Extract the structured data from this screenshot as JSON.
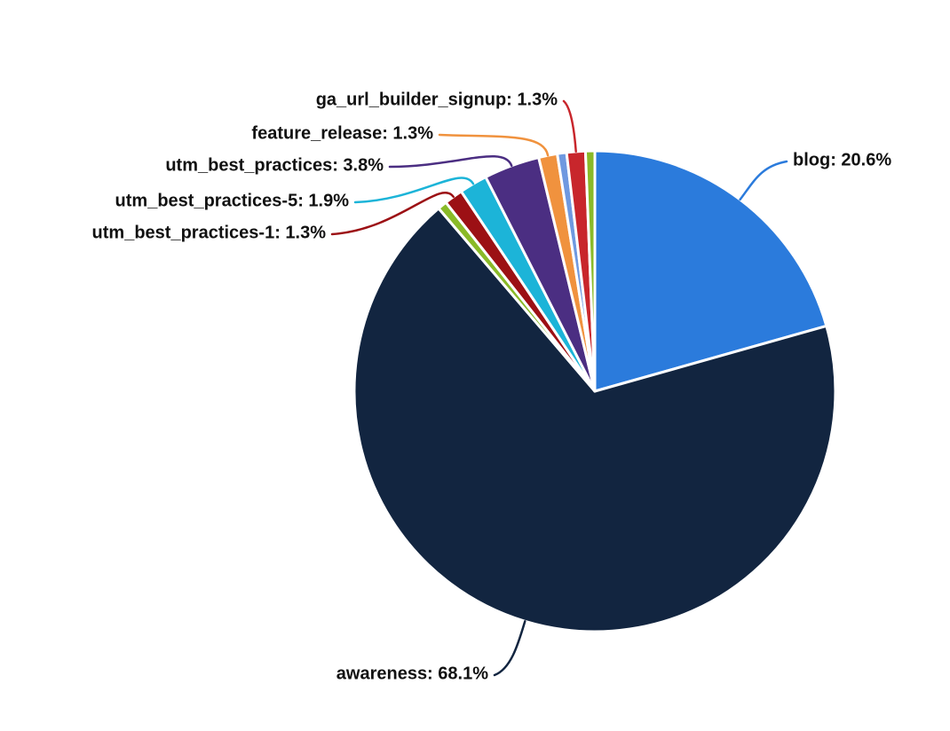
{
  "chart_data": {
    "type": "pie",
    "title": "",
    "legend": false,
    "background_color": "#ffffff",
    "label_text_color": "#111111",
    "slice_separator_color": "#ffffff",
    "start_angle_deg": 0,
    "direction": "clockwise",
    "slices": [
      {
        "name": "blog",
        "label": "blog: 20.6%",
        "percent": 20.6,
        "weight": 33,
        "color": "#2b7bdc"
      },
      {
        "name": "awareness",
        "label": "awareness: 68.1%",
        "percent": 68.1,
        "weight": 109,
        "color": "#122540"
      },
      {
        "name": "",
        "label": null,
        "percent": 0.6,
        "weight": 1,
        "color": "#8aba28"
      },
      {
        "name": "utm_best_practices-1",
        "label": "utm_best_practices-1: 1.3%",
        "percent": 1.3,
        "weight": 2,
        "color": "#9c1014"
      },
      {
        "name": "utm_best_practices-5",
        "label": "utm_best_practices-5: 1.9%",
        "percent": 1.9,
        "weight": 3,
        "color": "#1cb4d8"
      },
      {
        "name": "utm_best_practices",
        "label": "utm_best_practices: 3.8%",
        "percent": 3.8,
        "weight": 6,
        "color": "#4b2e82"
      },
      {
        "name": "feature_release",
        "label": "feature_release: 1.3%",
        "percent": 1.3,
        "weight": 2,
        "color": "#f0923e"
      },
      {
        "name": "",
        "label": null,
        "percent": 0.6,
        "weight": 1,
        "color": "#6f99e0"
      },
      {
        "name": "ga_url_builder_signup",
        "label": "ga_url_builder_signup: 1.3%",
        "percent": 1.3,
        "weight": 2,
        "color": "#c8262c"
      },
      {
        "name": "",
        "label": null,
        "percent": 0.6,
        "weight": 1,
        "color": "#8aba28"
      }
    ]
  }
}
